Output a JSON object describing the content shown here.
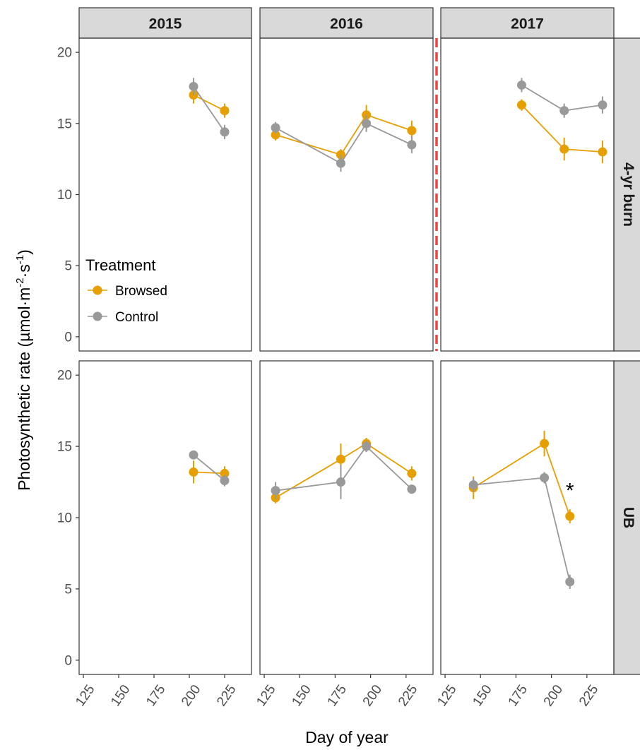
{
  "chart_data": {
    "type": "line",
    "xlabel": "Day of year",
    "ylabel": "Photosynthetic rate (µmol·m⁻²·s⁻¹)",
    "ylabel_parts": {
      "main": "Photosynthetic rate (µmol·m",
      "exp1": "-2",
      "mid": "·s",
      "exp2": "-1",
      "end": ")"
    },
    "xlim": [
      122,
      244
    ],
    "ylim": [
      -1,
      21
    ],
    "x_ticks": [
      125,
      150,
      175,
      200,
      225
    ],
    "x_tick_labels": [
      "125",
      "150",
      "175",
      "200",
      "225"
    ],
    "y_ticks": [
      0,
      5,
      10,
      15,
      20
    ],
    "y_tick_labels": [
      "0",
      "5",
      "10",
      "15",
      "20"
    ],
    "columns": [
      "2015",
      "2016",
      "2017"
    ],
    "rows": [
      "4-yr burn",
      "UB"
    ],
    "legend": {
      "title": "Treatment",
      "placement": "inside top-left panel, lower-left",
      "entries": [
        {
          "name": "Browsed",
          "color": "#E69F00"
        },
        {
          "name": "Control",
          "color": "#999999"
        }
      ]
    },
    "colors": {
      "Browsed": "#E69F00",
      "Control": "#999999",
      "divider": "#EE4444",
      "strip": "#D9D9D9"
    },
    "panels": [
      {
        "row": "4-yr burn",
        "col": "2015",
        "series": [
          {
            "name": "Browsed",
            "x": [
              203,
              225
            ],
            "y": [
              17.0,
              15.9
            ],
            "err": [
              0.6,
              0.5
            ]
          },
          {
            "name": "Control",
            "x": [
              203,
              225
            ],
            "y": [
              17.6,
              14.4
            ],
            "err": [
              0.6,
              0.5
            ]
          }
        ]
      },
      {
        "row": "4-yr burn",
        "col": "2016",
        "series": [
          {
            "name": "Browsed",
            "x": [
              133,
              179,
              197,
              229
            ],
            "y": [
              14.2,
              12.8,
              15.6,
              14.5
            ],
            "err": [
              0.4,
              0.4,
              0.7,
              0.7
            ]
          },
          {
            "name": "Control",
            "x": [
              133,
              179,
              197,
              229
            ],
            "y": [
              14.7,
              12.2,
              15.0,
              13.5
            ],
            "err": [
              0.4,
              0.6,
              0.6,
              0.6
            ]
          }
        ]
      },
      {
        "row": "4-yr burn",
        "col": "2017",
        "series": [
          {
            "name": "Browsed",
            "x": [
              179,
              209,
              236
            ],
            "y": [
              16.3,
              13.2,
              13.0
            ],
            "err": [
              0.4,
              0.8,
              0.8
            ]
          },
          {
            "name": "Control",
            "x": [
              179,
              209,
              236
            ],
            "y": [
              17.7,
              15.9,
              16.3
            ],
            "err": [
              0.5,
              0.5,
              0.6
            ]
          }
        ]
      },
      {
        "row": "UB",
        "col": "2015",
        "series": [
          {
            "name": "Browsed",
            "x": [
              203,
              225
            ],
            "y": [
              13.2,
              13.1
            ],
            "err": [
              0.8,
              0.5
            ]
          },
          {
            "name": "Control",
            "x": [
              203,
              225
            ],
            "y": [
              14.4,
              12.6
            ],
            "err": [
              0.3,
              0.4
            ]
          }
        ]
      },
      {
        "row": "UB",
        "col": "2016",
        "series": [
          {
            "name": "Browsed",
            "x": [
              133,
              179,
              197,
              229
            ],
            "y": [
              11.4,
              14.1,
              15.2,
              13.1
            ],
            "err": [
              0.4,
              1.1,
              0.4,
              0.5
            ]
          },
          {
            "name": "Control",
            "x": [
              133,
              179,
              197,
              229
            ],
            "y": [
              11.9,
              12.5,
              15.0,
              12.0
            ],
            "err": [
              0.6,
              1.2,
              0.4,
              0.3
            ]
          }
        ]
      },
      {
        "row": "UB",
        "col": "2017",
        "series": [
          {
            "name": "Browsed",
            "x": [
              145,
              195,
              213
            ],
            "y": [
              12.1,
              15.2,
              10.1
            ],
            "err": [
              0.8,
              0.9,
              0.5
            ]
          },
          {
            "name": "Control",
            "x": [
              145,
              195,
              213
            ],
            "y": [
              12.3,
              12.8,
              5.5
            ],
            "err": [
              0.5,
              0.4,
              0.5
            ]
          }
        ]
      }
    ],
    "annotations": [
      {
        "row": "UB",
        "col": "2017",
        "text": "*",
        "x": 213,
        "y": 12.1
      }
    ]
  }
}
